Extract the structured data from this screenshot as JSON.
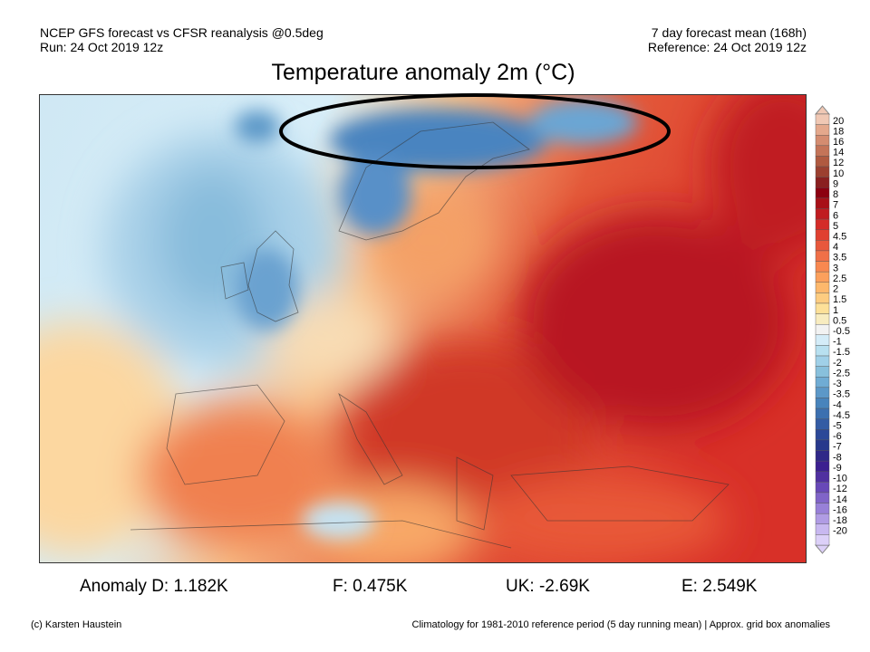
{
  "header": {
    "left_line1": "NCEP GFS forecast vs CFSR reanalysis @0.5deg",
    "left_line2": "Run: 24 Oct 2019 12z",
    "right_line1": "7 day forecast mean (168h)",
    "right_line2": "Reference: 24 Oct 2019 12z",
    "title": "Temperature anomaly 2m (°C)"
  },
  "colorbar": {
    "labels": [
      "20",
      "18",
      "16",
      "14",
      "12",
      "10",
      "9",
      "8",
      "7",
      "6",
      "5",
      "4.5",
      "4",
      "3.5",
      "3",
      "2.5",
      "2",
      "1.5",
      "1",
      "0.5",
      "-0.5",
      "-1",
      "-1.5",
      "-2",
      "-2.5",
      "-3",
      "-3.5",
      "-4",
      "-4.5",
      "-5",
      "-6",
      "-7",
      "-8",
      "-9",
      "-10",
      "-12",
      "-14",
      "-16",
      "-18",
      "-20"
    ],
    "colors": [
      "#f0c8b4",
      "#e4a88c",
      "#d48c70",
      "#c47458",
      "#b05a40",
      "#9c4030",
      "#8a2020",
      "#8c0010",
      "#a81018",
      "#c01c20",
      "#d42c28",
      "#e04030",
      "#e8583c",
      "#f07048",
      "#f88850",
      "#fca05c",
      "#fdb86c",
      "#fdcc80",
      "#fde098",
      "#f8ecc0",
      "#f2f2f2",
      "#d4ecf8",
      "#b8e0f0",
      "#a0d0e8",
      "#88c0dc",
      "#70acd4",
      "#5c98c8",
      "#4884bc",
      "#3c70b0",
      "#345ca4",
      "#2c4898",
      "#28388c",
      "#302888",
      "#3c2090",
      "#5030a0",
      "#6848b8",
      "#8064c8",
      "#9880d8",
      "#b09ce4",
      "#c8b8f0",
      "#dcd0f8"
    ]
  },
  "stats": {
    "d": "Anomaly D: 1.182K",
    "f": "F: 0.475K",
    "uk": "UK: -2.69K",
    "e": "E: 2.549K"
  },
  "footer": {
    "credit": "(c) Karsten Haustein",
    "note": "Climatology for 1981-2010 reference period (5 day running mean) | Approx. grid box anomalies"
  }
}
